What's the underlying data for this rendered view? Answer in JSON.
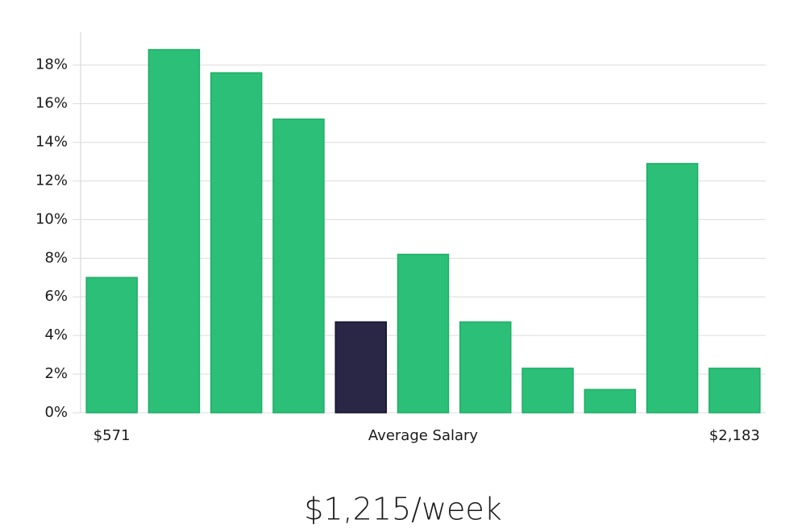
{
  "chart_data": {
    "type": "bar",
    "categories": [
      "$571",
      null,
      null,
      null,
      null,
      null,
      null,
      null,
      null,
      null,
      "$2,183"
    ],
    "values": [
      7.0,
      18.8,
      17.6,
      15.2,
      4.7,
      8.2,
      4.7,
      2.3,
      1.2,
      12.9,
      2.3
    ],
    "colors": [
      "#2bbf77",
      "#2bbf77",
      "#2bbf77",
      "#2bbf77",
      "#2a2646",
      "#2bbf77",
      "#2bbf77",
      "#2bbf77",
      "#2bbf77",
      "#2bbf77",
      "#2bbf77"
    ],
    "x_label": "Average Salary",
    "summary": "$1,215/week",
    "ylim": [
      0,
      19.7
    ],
    "yticks": [
      {
        "value": 0,
        "label": "0%"
      },
      {
        "value": 2,
        "label": "2%"
      },
      {
        "value": 4,
        "label": "4%"
      },
      {
        "value": 6,
        "label": "6%"
      },
      {
        "value": 8,
        "label": "8%"
      },
      {
        "value": 10,
        "label": "10%"
      },
      {
        "value": 12,
        "label": "12%"
      },
      {
        "value": 14,
        "label": "14%"
      },
      {
        "value": 16,
        "label": "16%"
      },
      {
        "value": 18,
        "label": "18%"
      }
    ],
    "grid": true
  }
}
